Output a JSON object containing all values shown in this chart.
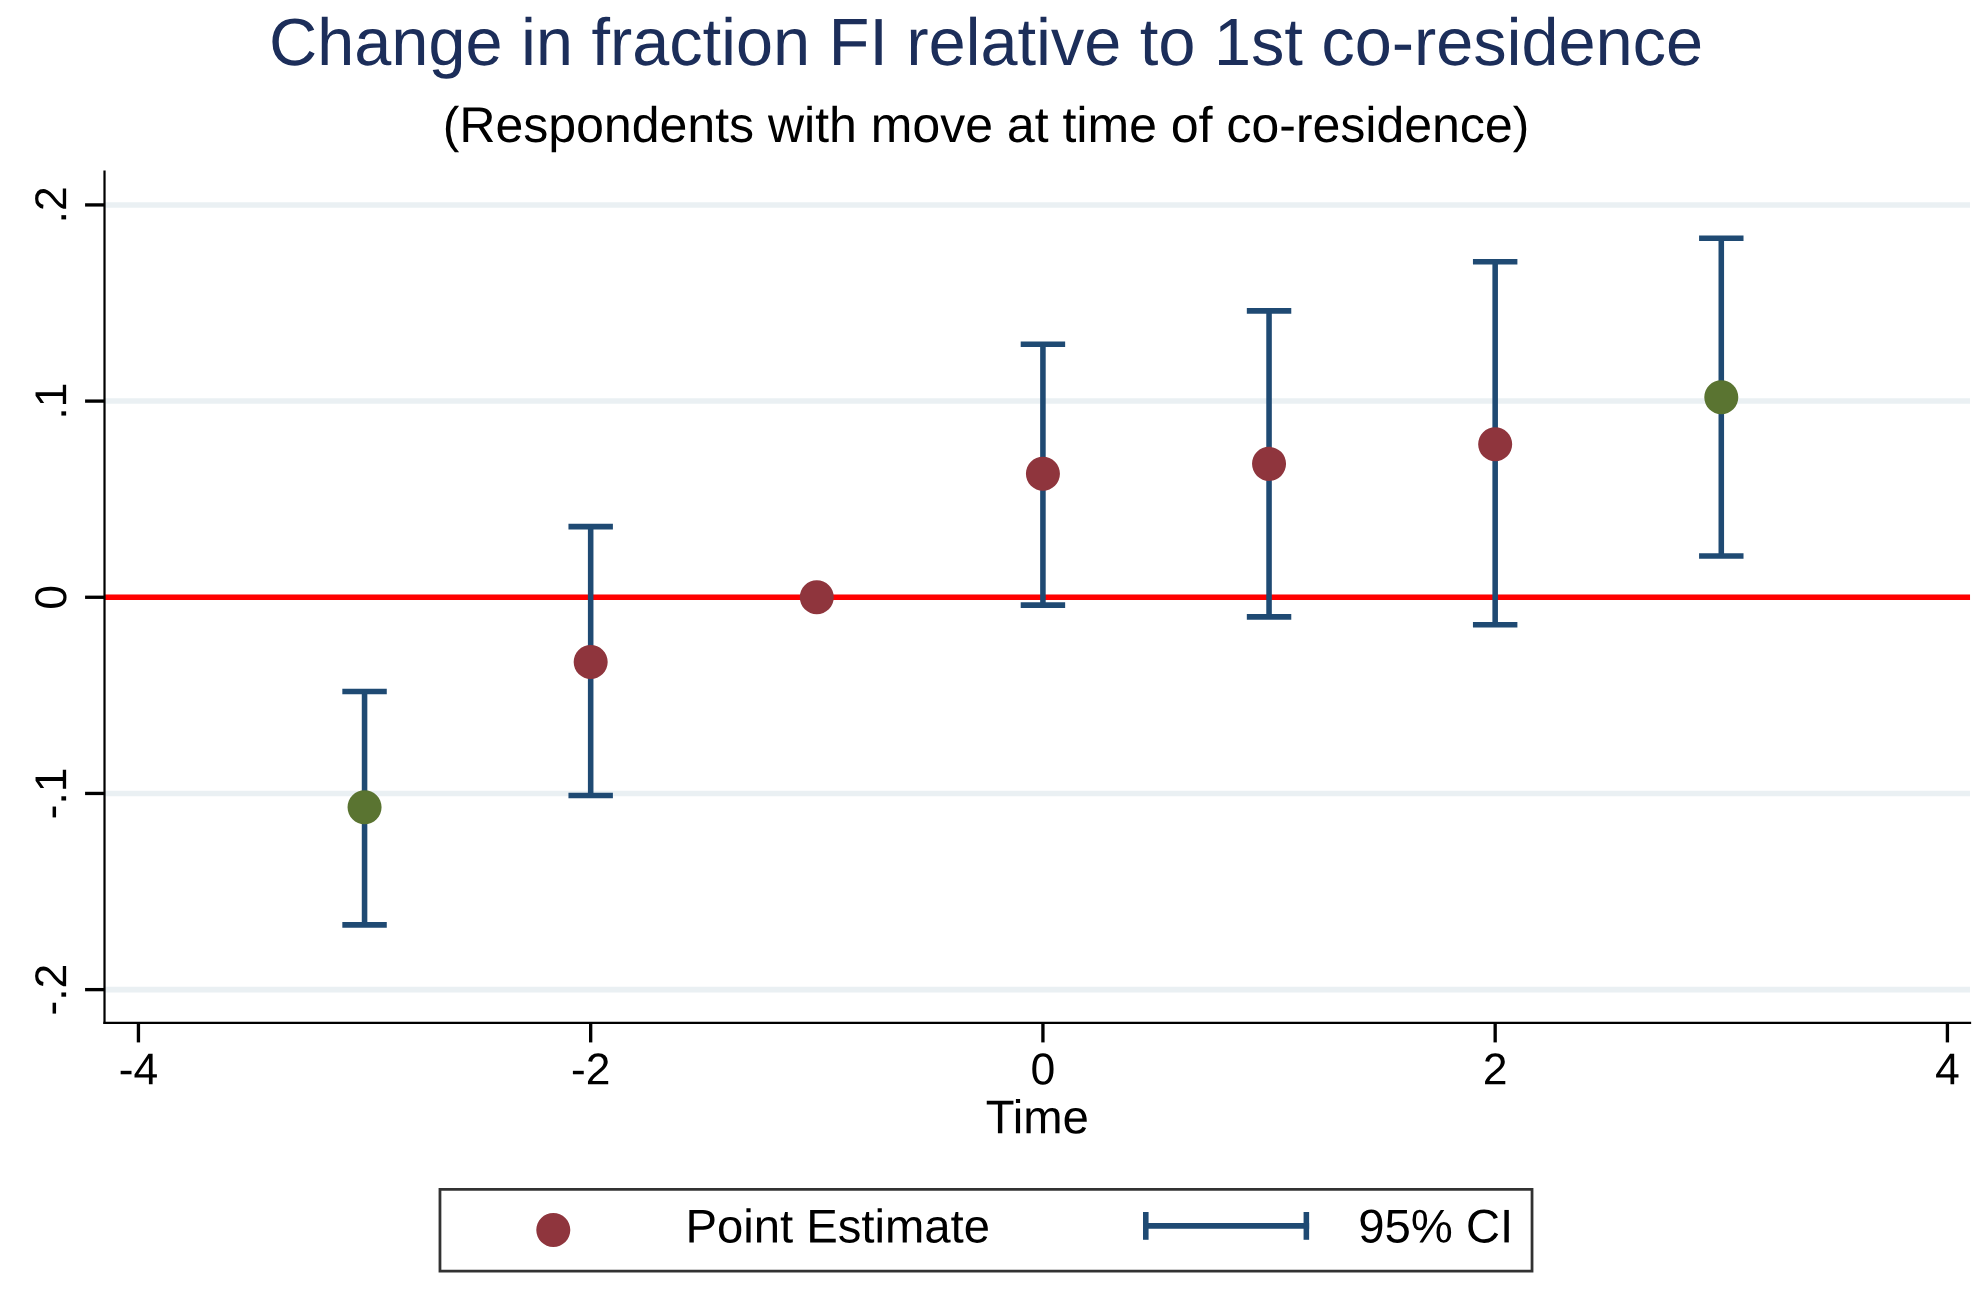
{
  "chart_data": {
    "type": "scatter",
    "title": "Change in fraction FI relative to 1st co-residence",
    "subtitle": "(Respondents with move at time of co-residence)",
    "xlabel": "Time",
    "x": [
      -3,
      -2,
      -1,
      0,
      1,
      2,
      3
    ],
    "series": [
      {
        "name": "Point Estimate",
        "color": "#1f4a73",
        "colors": [
          "#5a7431",
          "#8f353d",
          "#8f353d",
          "#8f353d",
          "#8f353d",
          "#8f353d",
          "#5a7431"
        ],
        "values": [
          -0.107,
          -0.033,
          0,
          0.063,
          0.068,
          0.078,
          0.102
        ],
        "errors": [
          [
            -0.167,
            -0.048
          ],
          [
            -0.101,
            0.036
          ],
          null,
          [
            -0.004,
            0.129
          ],
          [
            -0.01,
            0.146
          ],
          [
            -0.014,
            0.171
          ],
          [
            0.021,
            0.183
          ]
        ]
      }
    ],
    "annotations": [
      "95% CI"
    ],
    "xlim": [
      -4.15,
      4.1
    ],
    "xticks": [
      -4,
      -2,
      0,
      2,
      4
    ],
    "ylim": [
      -0.217,
      0.217
    ],
    "yticks": [
      {
        "value": -0.2,
        "label": "-.2"
      },
      {
        "value": -0.1,
        "label": "-.1"
      },
      0,
      {
        "value": 0.1,
        "label": ".1"
      },
      {
        "value": 0.2,
        "label": ".2"
      }
    ],
    "ref_lines": [
      {
        "axis": "y",
        "value": 0,
        "color": "#ff0000"
      }
    ],
    "grid": "y",
    "legend": "bottom"
  }
}
